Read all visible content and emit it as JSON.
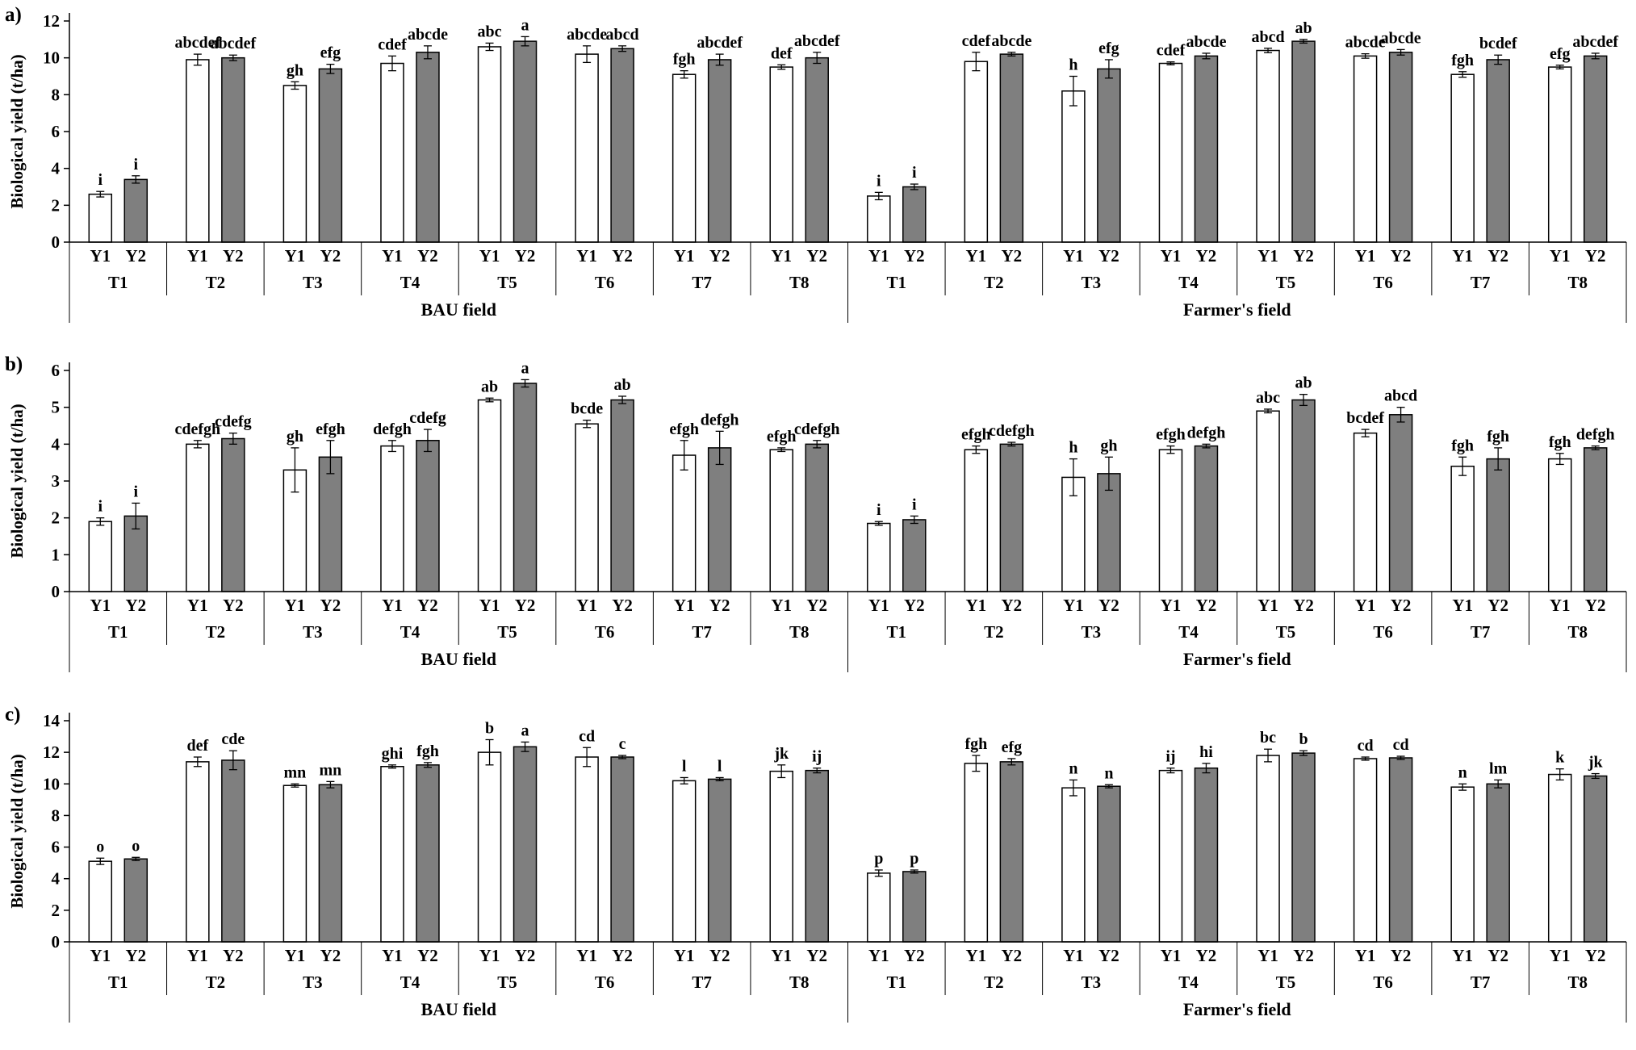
{
  "figure": {
    "description": "Biological yield (t/ha) bar charts for treatments T1-T8 over two years (Y1, Y2) in BAU field and Farmer's field",
    "colors": {
      "y1_fill": "#ffffff",
      "y2_fill": "#7f7f7f",
      "bar_stroke": "#000000",
      "axis": "#000000"
    }
  },
  "chart_data": [
    {
      "type": "bar",
      "panel_label": "a)",
      "ylabel": "Biological yield (t/ha)",
      "ylim": [
        0,
        12
      ],
      "ytick_step": 2,
      "bar_series": [
        "Y1",
        "Y2"
      ],
      "fields": [
        {
          "name": "BAU field",
          "treatments": [
            "T1",
            "T2",
            "T3",
            "T4",
            "T5",
            "T6",
            "T7",
            "T8"
          ],
          "Y1": [
            2.6,
            9.9,
            8.5,
            9.7,
            10.6,
            10.2,
            9.1,
            9.5
          ],
          "Y1_err": [
            0.15,
            0.3,
            0.2,
            0.4,
            0.2,
            0.45,
            0.2,
            0.12
          ],
          "Y1_sig": [
            "i",
            "abcdef",
            "gh",
            "cdef",
            "abc",
            "abcde",
            "fgh",
            "def"
          ],
          "Y2": [
            3.4,
            10.0,
            9.4,
            10.3,
            10.9,
            10.5,
            9.9,
            10.0
          ],
          "Y2_err": [
            0.2,
            0.15,
            0.25,
            0.35,
            0.25,
            0.15,
            0.3,
            0.3
          ],
          "Y2_sig": [
            "i",
            "abcdef",
            "efg",
            "abcde",
            "a",
            "abcd",
            "abcdef",
            "abcdef"
          ]
        },
        {
          "name": "Farmer's field",
          "treatments": [
            "T1",
            "T2",
            "T3",
            "T4",
            "T5",
            "T6",
            "T7",
            "T8"
          ],
          "Y1": [
            2.5,
            9.8,
            8.2,
            9.7,
            10.4,
            10.1,
            9.1,
            9.5
          ],
          "Y1_err": [
            0.2,
            0.5,
            0.8,
            0.08,
            0.12,
            0.12,
            0.15,
            0.1
          ],
          "Y1_sig": [
            "i",
            "cdef",
            "h",
            "cdef",
            "abcd",
            "abcde",
            "fgh",
            "efg"
          ],
          "Y2": [
            3.0,
            10.2,
            9.4,
            10.1,
            10.9,
            10.3,
            9.9,
            10.1
          ],
          "Y2_err": [
            0.15,
            0.1,
            0.5,
            0.15,
            0.1,
            0.15,
            0.25,
            0.15
          ],
          "Y2_sig": [
            "i",
            "abcde",
            "efg",
            "abcde",
            "ab",
            "abcde",
            "bcdef",
            "abcdef"
          ]
        }
      ]
    },
    {
      "type": "bar",
      "panel_label": "b)",
      "ylabel": "Biological yield (t/ha)",
      "ylim": [
        0,
        6
      ],
      "ytick_step": 1,
      "bar_series": [
        "Y1",
        "Y2"
      ],
      "fields": [
        {
          "name": "BAU field",
          "treatments": [
            "T1",
            "T2",
            "T3",
            "T4",
            "T5",
            "T6",
            "T7",
            "T8"
          ],
          "Y1": [
            1.9,
            4.0,
            3.3,
            3.95,
            5.2,
            4.55,
            3.7,
            3.85
          ],
          "Y1_err": [
            0.1,
            0.1,
            0.6,
            0.15,
            0.05,
            0.1,
            0.4,
            0.05
          ],
          "Y1_sig": [
            "i",
            "cdefgh",
            "gh",
            "defgh",
            "ab",
            "bcde",
            "efgh",
            "efgh"
          ],
          "Y2": [
            2.05,
            4.15,
            3.65,
            4.1,
            5.65,
            5.2,
            3.9,
            4.0
          ],
          "Y2_err": [
            0.35,
            0.15,
            0.45,
            0.3,
            0.1,
            0.1,
            0.45,
            0.1
          ],
          "Y2_sig": [
            "i",
            "cdefg",
            "efgh",
            "cdefg",
            "a",
            "ab",
            "defgh",
            "cdefgh"
          ]
        },
        {
          "name": "Farmer's field",
          "treatments": [
            "T1",
            "T2",
            "T3",
            "T4",
            "T5",
            "T6",
            "T7",
            "T8"
          ],
          "Y1": [
            1.85,
            3.85,
            3.1,
            3.85,
            4.9,
            4.3,
            3.4,
            3.6
          ],
          "Y1_err": [
            0.05,
            0.1,
            0.5,
            0.1,
            0.05,
            0.1,
            0.25,
            0.15
          ],
          "Y1_sig": [
            "i",
            "efgh",
            "h",
            "efgh",
            "abc",
            "bcdef",
            "fgh",
            "fgh"
          ],
          "Y2": [
            1.95,
            4.0,
            3.2,
            3.95,
            5.2,
            4.8,
            3.6,
            3.9
          ],
          "Y2_err": [
            0.1,
            0.05,
            0.45,
            0.05,
            0.15,
            0.2,
            0.3,
            0.05
          ],
          "Y2_sig": [
            "i",
            "cdefgh",
            "gh",
            "defgh",
            "ab",
            "abcd",
            "fgh",
            "defgh"
          ]
        }
      ]
    },
    {
      "type": "bar",
      "panel_label": "c)",
      "ylabel": "Biological yield (t/ha)",
      "ylim": [
        0,
        14
      ],
      "ytick_step": 2,
      "bar_series": [
        "Y1",
        "Y2"
      ],
      "fields": [
        {
          "name": "BAU field",
          "treatments": [
            "T1",
            "T2",
            "T3",
            "T4",
            "T5",
            "T6",
            "T7",
            "T8"
          ],
          "Y1": [
            5.1,
            11.4,
            9.9,
            11.1,
            12.0,
            11.7,
            10.2,
            10.8
          ],
          "Y1_err": [
            0.2,
            0.3,
            0.1,
            0.1,
            0.8,
            0.6,
            0.2,
            0.4
          ],
          "Y1_sig": [
            "o",
            "def",
            "mn",
            "ghi",
            "b",
            "cd",
            "l",
            "jk"
          ],
          "Y2": [
            5.25,
            11.5,
            9.95,
            11.2,
            12.35,
            11.7,
            10.3,
            10.85
          ],
          "Y2_err": [
            0.1,
            0.6,
            0.2,
            0.15,
            0.3,
            0.1,
            0.1,
            0.15
          ],
          "Y2_sig": [
            "o",
            "cde",
            "mn",
            "fgh",
            "a",
            "c",
            "l",
            "ij"
          ]
        },
        {
          "name": "Farmer's field",
          "treatments": [
            "T1",
            "T2",
            "T3",
            "T4",
            "T5",
            "T6",
            "T7",
            "T8"
          ],
          "Y1": [
            4.35,
            11.3,
            9.75,
            10.85,
            11.8,
            11.6,
            9.8,
            10.6
          ],
          "Y1_err": [
            0.2,
            0.5,
            0.5,
            0.15,
            0.4,
            0.1,
            0.2,
            0.35
          ],
          "Y1_sig": [
            "p",
            "fgh",
            "n",
            "ij",
            "bc",
            "cd",
            "n",
            "k"
          ],
          "Y2": [
            4.45,
            11.4,
            9.85,
            11.0,
            11.95,
            11.65,
            10.0,
            10.5
          ],
          "Y2_err": [
            0.1,
            0.2,
            0.1,
            0.3,
            0.15,
            0.1,
            0.25,
            0.15
          ],
          "Y2_sig": [
            "p",
            "efg",
            "n",
            "hi",
            "b",
            "cd",
            "lm",
            "jk"
          ]
        }
      ]
    }
  ]
}
